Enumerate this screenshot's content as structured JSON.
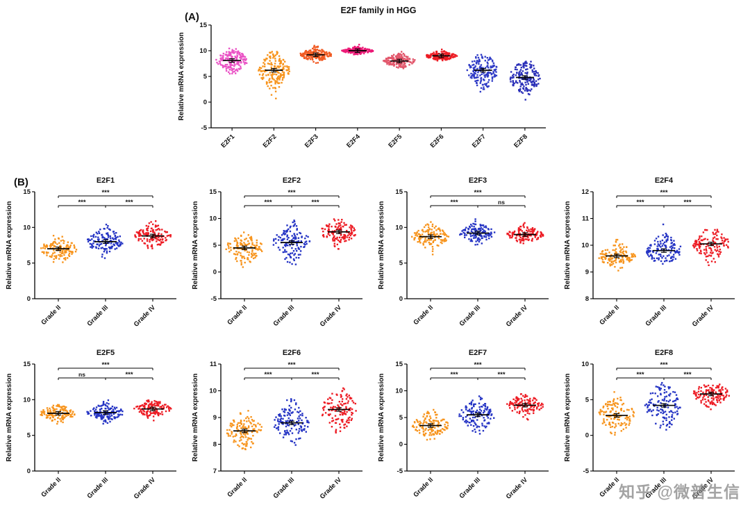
{
  "watermark": {
    "text": "知乎 @微普生信"
  },
  "panels": {
    "a": {
      "label": "(A)"
    },
    "b": {
      "label": "(B)"
    }
  },
  "accent_colors": {
    "grade2_orange": "#F7941D",
    "grade3_blue": "#2534C4",
    "grade4_red": "#ED1C24"
  },
  "chart_data": [
    {
      "id": "e2f-family-hgg",
      "type": "scatter",
      "title": "E2F family in HGG",
      "ylabel": "Relative mRNA expression",
      "xlabel": "",
      "ylim": [
        -5,
        15
      ],
      "yticks": [
        -5,
        0,
        5,
        10,
        15
      ],
      "categories": [
        "E2F1",
        "E2F2",
        "E2F3",
        "E2F4",
        "E2F5",
        "E2F6",
        "E2F7",
        "E2F8"
      ],
      "groups": [
        {
          "name": "E2F1",
          "color": "#EA52C5",
          "mean": 8.1,
          "sd": 1.2,
          "min": 5,
          "max": 11.5,
          "n": 170
        },
        {
          "name": "E2F2",
          "color": "#F7941D",
          "mean": 6.2,
          "sd": 1.8,
          "min": 0,
          "max": 10,
          "n": 170
        },
        {
          "name": "E2F3",
          "color": "#F15A22",
          "mean": 9.2,
          "sd": 0.7,
          "min": 7.5,
          "max": 11.5,
          "n": 170
        },
        {
          "name": "E2F4",
          "color": "#EC1A77",
          "mean": 10.0,
          "sd": 0.35,
          "min": 9.2,
          "max": 11.2,
          "n": 170
        },
        {
          "name": "E2F5",
          "color": "#E2566B",
          "mean": 8.0,
          "sd": 0.7,
          "min": 6.3,
          "max": 10.5,
          "n": 170
        },
        {
          "name": "E2F6",
          "color": "#ED1C24",
          "mean": 9.0,
          "sd": 0.45,
          "min": 8,
          "max": 10.3,
          "n": 170
        },
        {
          "name": "E2F7",
          "color": "#2F3BC6",
          "mean": 6.2,
          "sd": 1.8,
          "min": 1,
          "max": 9.5,
          "n": 170
        },
        {
          "name": "E2F8",
          "color": "#2A2FB8",
          "mean": 4.8,
          "sd": 1.8,
          "min": 0,
          "max": 8,
          "n": 170
        }
      ],
      "comparisons": []
    },
    {
      "id": "e2f1-by-grade",
      "type": "scatter",
      "title": "E2F1",
      "ylabel": "Relative mRNA expression",
      "ylim": [
        0,
        15
      ],
      "yticks": [
        0,
        5,
        10,
        15
      ],
      "categories": [
        "Grade II",
        "Grade III",
        "Grade IV"
      ],
      "groups": [
        {
          "name": "Grade II",
          "color": "#F7941D",
          "mean": 7.0,
          "sd": 0.9,
          "min": 5,
          "max": 9.5,
          "n": 130
        },
        {
          "name": "Grade III",
          "color": "#2534C4",
          "mean": 8.0,
          "sd": 1.0,
          "min": 5.5,
          "max": 10.5,
          "n": 130
        },
        {
          "name": "Grade IV",
          "color": "#ED1C24",
          "mean": 8.8,
          "sd": 0.8,
          "min": 7,
          "max": 11,
          "n": 130
        }
      ],
      "comparisons": [
        {
          "a": 0,
          "b": 2,
          "label": "***",
          "row": 0
        },
        {
          "a": 0,
          "b": 1,
          "label": "***",
          "row": 1
        },
        {
          "a": 1,
          "b": 2,
          "label": "***",
          "row": 1
        }
      ]
    },
    {
      "id": "e2f2-by-grade",
      "type": "scatter",
      "title": "E2F2",
      "ylabel": "Relative mRNA expression",
      "ylim": [
        -5,
        15
      ],
      "yticks": [
        -5,
        0,
        5,
        10,
        15
      ],
      "categories": [
        "Grade II",
        "Grade III",
        "Grade IV"
      ],
      "groups": [
        {
          "name": "Grade II",
          "color": "#F7941D",
          "mean": 4.5,
          "sd": 1.5,
          "min": 0,
          "max": 8,
          "n": 130
        },
        {
          "name": "Grade III",
          "color": "#2534C4",
          "mean": 5.5,
          "sd": 1.8,
          "min": 1,
          "max": 10,
          "n": 130
        },
        {
          "name": "Grade IV",
          "color": "#ED1C24",
          "mean": 7.5,
          "sd": 1.2,
          "min": 4,
          "max": 10,
          "n": 130
        }
      ],
      "comparisons": [
        {
          "a": 0,
          "b": 2,
          "label": "***",
          "row": 0
        },
        {
          "a": 0,
          "b": 1,
          "label": "***",
          "row": 1
        },
        {
          "a": 1,
          "b": 2,
          "label": "***",
          "row": 1
        }
      ]
    },
    {
      "id": "e2f3-by-grade",
      "type": "scatter",
      "title": "E2F3",
      "ylabel": "Relative mRNA expression",
      "ylim": [
        0,
        15
      ],
      "yticks": [
        0,
        5,
        10,
        15
      ],
      "categories": [
        "Grade II",
        "Grade III",
        "Grade IV"
      ],
      "groups": [
        {
          "name": "Grade II",
          "color": "#F7941D",
          "mean": 8.7,
          "sd": 0.8,
          "min": 6,
          "max": 11,
          "n": 130
        },
        {
          "name": "Grade III",
          "color": "#2534C4",
          "mean": 9.2,
          "sd": 0.7,
          "min": 7.5,
          "max": 11.5,
          "n": 130
        },
        {
          "name": "Grade IV",
          "color": "#ED1C24",
          "mean": 9.0,
          "sd": 0.6,
          "min": 7.5,
          "max": 11,
          "n": 130
        }
      ],
      "comparisons": [
        {
          "a": 0,
          "b": 2,
          "label": "***",
          "row": 0
        },
        {
          "a": 0,
          "b": 1,
          "label": "***",
          "row": 1
        },
        {
          "a": 1,
          "b": 2,
          "label": "ns",
          "row": 1
        }
      ]
    },
    {
      "id": "e2f4-by-grade",
      "type": "scatter",
      "title": "E2F4",
      "ylabel": "Relative mRNA expression",
      "ylim": [
        8,
        12
      ],
      "yticks": [
        8,
        9,
        10,
        11,
        12
      ],
      "categories": [
        "Grade II",
        "Grade III",
        "Grade IV"
      ],
      "groups": [
        {
          "name": "Grade II",
          "color": "#F7941D",
          "mean": 9.6,
          "sd": 0.25,
          "min": 9,
          "max": 10.3,
          "n": 130
        },
        {
          "name": "Grade III",
          "color": "#2534C4",
          "mean": 9.8,
          "sd": 0.3,
          "min": 9,
          "max": 10.8,
          "n": 130
        },
        {
          "name": "Grade IV",
          "color": "#ED1C24",
          "mean": 10.05,
          "sd": 0.3,
          "min": 9.1,
          "max": 10.9,
          "n": 130
        }
      ],
      "comparisons": [
        {
          "a": 0,
          "b": 2,
          "label": "***",
          "row": 0
        },
        {
          "a": 0,
          "b": 1,
          "label": "***",
          "row": 1
        },
        {
          "a": 1,
          "b": 2,
          "label": "***",
          "row": 1
        }
      ]
    },
    {
      "id": "e2f5-by-grade",
      "type": "scatter",
      "title": "E2F5",
      "ylabel": "Relative mRNA expression",
      "ylim": [
        0,
        15
      ],
      "yticks": [
        0,
        5,
        10,
        15
      ],
      "categories": [
        "Grade II",
        "Grade III",
        "Grade IV"
      ],
      "groups": [
        {
          "name": "Grade II",
          "color": "#F7941D",
          "mean": 8.1,
          "sd": 0.6,
          "min": 6,
          "max": 9.5,
          "n": 130
        },
        {
          "name": "Grade III",
          "color": "#2534C4",
          "mean": 8.2,
          "sd": 0.6,
          "min": 6.5,
          "max": 10,
          "n": 130
        },
        {
          "name": "Grade IV",
          "color": "#ED1C24",
          "mean": 8.7,
          "sd": 0.6,
          "min": 7,
          "max": 10,
          "n": 130
        }
      ],
      "comparisons": [
        {
          "a": 0,
          "b": 2,
          "label": "***",
          "row": 0
        },
        {
          "a": 0,
          "b": 1,
          "label": "ns",
          "row": 1
        },
        {
          "a": 1,
          "b": 2,
          "label": "***",
          "row": 1
        }
      ]
    },
    {
      "id": "e2f6-by-grade",
      "type": "scatter",
      "title": "E2F6",
      "ylabel": "Relative mRNA expression",
      "ylim": [
        7,
        11
      ],
      "yticks": [
        7,
        8,
        9,
        10,
        11
      ],
      "categories": [
        "Grade II",
        "Grade III",
        "Grade IV"
      ],
      "groups": [
        {
          "name": "Grade II",
          "color": "#F7941D",
          "mean": 8.5,
          "sd": 0.35,
          "min": 7.7,
          "max": 9.5,
          "n": 130
        },
        {
          "name": "Grade III",
          "color": "#2534C4",
          "mean": 8.8,
          "sd": 0.4,
          "min": 7.9,
          "max": 10.2,
          "n": 130
        },
        {
          "name": "Grade IV",
          "color": "#ED1C24",
          "mean": 9.3,
          "sd": 0.4,
          "min": 8.3,
          "max": 10.3,
          "n": 130
        }
      ],
      "comparisons": [
        {
          "a": 0,
          "b": 2,
          "label": "***",
          "row": 0
        },
        {
          "a": 0,
          "b": 1,
          "label": "***",
          "row": 1
        },
        {
          "a": 1,
          "b": 2,
          "label": "***",
          "row": 1
        }
      ]
    },
    {
      "id": "e2f7-by-grade",
      "type": "scatter",
      "title": "E2F7",
      "ylabel": "Relative mRNA expression",
      "ylim": [
        -5,
        15
      ],
      "yticks": [
        -5,
        0,
        5,
        10,
        15
      ],
      "categories": [
        "Grade II",
        "Grade III",
        "Grade IV"
      ],
      "groups": [
        {
          "name": "Grade II",
          "color": "#F7941D",
          "mean": 3.5,
          "sd": 1.2,
          "min": 0.5,
          "max": 6.5,
          "n": 130
        },
        {
          "name": "Grade III",
          "color": "#2534C4",
          "mean": 5.5,
          "sd": 1.6,
          "min": 1,
          "max": 9.5,
          "n": 130
        },
        {
          "name": "Grade IV",
          "color": "#ED1C24",
          "mean": 7.3,
          "sd": 1.0,
          "min": 4.5,
          "max": 9.5,
          "n": 130
        }
      ],
      "comparisons": [
        {
          "a": 0,
          "b": 2,
          "label": "***",
          "row": 0
        },
        {
          "a": 0,
          "b": 1,
          "label": "***",
          "row": 1
        },
        {
          "a": 1,
          "b": 2,
          "label": "***",
          "row": 1
        }
      ]
    },
    {
      "id": "e2f8-by-grade",
      "type": "scatter",
      "title": "E2F8",
      "ylabel": "Relative mRNA expression",
      "ylim": [
        -5,
        10
      ],
      "yticks": [
        -5,
        0,
        5,
        10
      ],
      "categories": [
        "Grade II",
        "Grade III",
        "Grade IV"
      ],
      "groups": [
        {
          "name": "Grade II",
          "color": "#F7941D",
          "mean": 2.8,
          "sd": 1.3,
          "min": 0,
          "max": 6.5,
          "n": 130
        },
        {
          "name": "Grade III",
          "color": "#2534C4",
          "mean": 4.2,
          "sd": 1.7,
          "min": 0,
          "max": 7.5,
          "n": 130
        },
        {
          "name": "Grade IV",
          "color": "#ED1C24",
          "mean": 5.8,
          "sd": 0.9,
          "min": 2.5,
          "max": 7.5,
          "n": 130
        }
      ],
      "comparisons": [
        {
          "a": 0,
          "b": 2,
          "label": "***",
          "row": 0
        },
        {
          "a": 0,
          "b": 1,
          "label": "***",
          "row": 1
        },
        {
          "a": 1,
          "b": 2,
          "label": "***",
          "row": 1
        }
      ]
    }
  ]
}
